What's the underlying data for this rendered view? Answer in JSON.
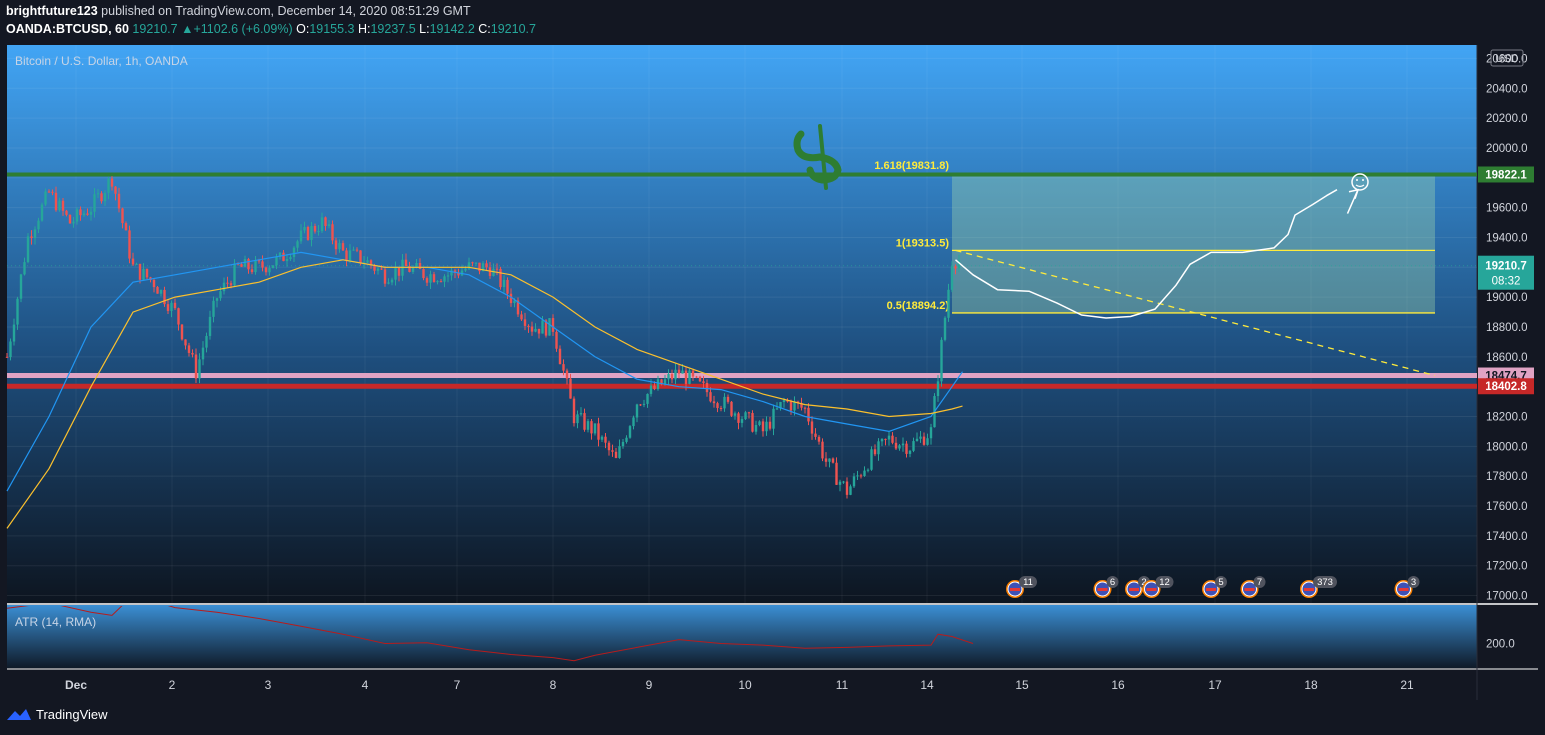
{
  "header": {
    "author": "brightfuture123",
    "published": "published on TradingView.com, December 14, 2020 08:51:29 GMT",
    "symbol": "OANDA:BTCUSD, 60",
    "last": "19210.7",
    "change_arrow": "▲",
    "change": "+1102.6 (+6.09%)",
    "o_label": "O:",
    "o": "19155.3",
    "h_label": "H:",
    "h": "19237.5",
    "l_label": "L:",
    "l": "19142.2",
    "c_label": "C:",
    "c": "19210.7"
  },
  "legend": {
    "main": "Bitcoin / U.S. Dollar, 1h, OANDA",
    "atr": "ATR (14, RMA)",
    "currency": "USD"
  },
  "footer": {
    "brand": "TradingView",
    "logo_icon": "tradingview-logo-icon"
  },
  "colors": {
    "up": "#26a69a",
    "down": "#ef5350",
    "resistance": "#2e7d32",
    "pink_line": "#e0a3c4",
    "red_line": "#c62828",
    "fib": "#ffeb3b",
    "ema_fast": "#2196f3",
    "ema_slow": "#fbc02d",
    "atr": "#b71c1c",
    "background": "#131722"
  },
  "chart_data": [
    {
      "type": "candlestick",
      "title": "Bitcoin / U.S. Dollar, 1h, OANDA",
      "x_ticks": [
        "Dec",
        "2",
        "3",
        "4",
        "7",
        "8",
        "9",
        "10",
        "11",
        "14",
        "15",
        "16",
        "17",
        "18",
        "21"
      ],
      "y_ticks": [
        17000,
        17200,
        17400,
        17600,
        17800,
        18000,
        18200,
        18400,
        18600,
        18800,
        19000,
        19200,
        19400,
        19600,
        19800,
        20000,
        20200,
        20400,
        20600
      ],
      "ylim": [
        16950,
        20690
      ],
      "y_tick_format": "1dp",
      "price_path": [
        [
          0,
          18600
        ],
        [
          6,
          19400
        ],
        [
          12,
          19700
        ],
        [
          18,
          19500
        ],
        [
          24,
          19600
        ],
        [
          30,
          19800
        ],
        [
          36,
          19200
        ],
        [
          42,
          19100
        ],
        [
          48,
          18900
        ],
        [
          54,
          18500
        ],
        [
          60,
          19000
        ],
        [
          66,
          19200
        ],
        [
          72,
          19200
        ],
        [
          78,
          19250
        ],
        [
          84,
          19400
        ],
        [
          90,
          19500
        ],
        [
          96,
          19300
        ],
        [
          102,
          19250
        ],
        [
          108,
          19150
        ],
        [
          114,
          19200
        ],
        [
          120,
          19150
        ],
        [
          126,
          19150
        ],
        [
          132,
          19200
        ],
        [
          138,
          19200
        ],
        [
          144,
          19000
        ],
        [
          150,
          18800
        ],
        [
          156,
          18800
        ],
        [
          162,
          18200
        ],
        [
          168,
          18100
        ],
        [
          174,
          17900
        ],
        [
          180,
          18300
        ],
        [
          186,
          18400
        ],
        [
          192,
          18500
        ],
        [
          198,
          18400
        ],
        [
          204,
          18300
        ],
        [
          210,
          18200
        ],
        [
          216,
          18100
        ],
        [
          222,
          18300
        ],
        [
          228,
          18250
        ],
        [
          234,
          17900
        ],
        [
          240,
          17700
        ],
        [
          246,
          17900
        ],
        [
          252,
          18050
        ],
        [
          258,
          18000
        ],
        [
          264,
          18100
        ],
        [
          270,
          19250
        ]
      ],
      "ema_fast": [
        [
          0,
          17700
        ],
        [
          12,
          18200
        ],
        [
          24,
          18800
        ],
        [
          36,
          19100
        ],
        [
          48,
          19150
        ],
        [
          60,
          19200
        ],
        [
          72,
          19250
        ],
        [
          84,
          19300
        ],
        [
          96,
          19250
        ],
        [
          108,
          19200
        ],
        [
          120,
          19200
        ],
        [
          132,
          19150
        ],
        [
          144,
          19000
        ],
        [
          156,
          18800
        ],
        [
          168,
          18600
        ],
        [
          180,
          18450
        ],
        [
          192,
          18400
        ],
        [
          204,
          18380
        ],
        [
          216,
          18300
        ],
        [
          228,
          18200
        ],
        [
          240,
          18150
        ],
        [
          252,
          18100
        ],
        [
          264,
          18200
        ],
        [
          270,
          18400
        ],
        [
          273,
          18500
        ]
      ],
      "ema_slow": [
        [
          0,
          17450
        ],
        [
          12,
          17850
        ],
        [
          24,
          18400
        ],
        [
          36,
          18900
        ],
        [
          48,
          19000
        ],
        [
          60,
          19050
        ],
        [
          72,
          19100
        ],
        [
          84,
          19200
        ],
        [
          96,
          19250
        ],
        [
          108,
          19200
        ],
        [
          120,
          19200
        ],
        [
          132,
          19200
        ],
        [
          144,
          19150
        ],
        [
          156,
          19000
        ],
        [
          168,
          18800
        ],
        [
          180,
          18650
        ],
        [
          192,
          18550
        ],
        [
          204,
          18450
        ],
        [
          216,
          18350
        ],
        [
          228,
          18280
        ],
        [
          240,
          18250
        ],
        [
          252,
          18200
        ],
        [
          264,
          18220
        ],
        [
          270,
          18250
        ],
        [
          273,
          18270
        ]
      ],
      "levels": [
        {
          "label": "19822.1",
          "value": 19822.1,
          "color": "#2e7d32"
        },
        {
          "label": "18474.7",
          "value": 18474.7,
          "color": "#e0a3c4"
        },
        {
          "label": "18402.8",
          "value": 18402.8,
          "color": "#c62828"
        }
      ],
      "last_price": {
        "label": "19210.7",
        "value": 19210.7,
        "countdown": "08:32"
      },
      "fib": [
        {
          "label": "1.618(19831.8)",
          "value": 19831.8
        },
        {
          "label": "1(19313.5)",
          "value": 19313.5
        },
        {
          "label": "0.5(18894.2)",
          "value": 18894.2
        }
      ],
      "fib_zone": {
        "start_bar": 270,
        "end_bar": 408,
        "top": 19831.8,
        "bottom": 18894.2
      },
      "projection_line": {
        "from": [
          271,
          19313.5
        ],
        "to": [
          408,
          18474.7
        ]
      },
      "forecast_path": [
        [
          271,
          19250
        ],
        [
          276,
          19150
        ],
        [
          283,
          19050
        ],
        [
          292,
          19040
        ],
        [
          300,
          18960
        ],
        [
          307,
          18880
        ],
        [
          314,
          18860
        ],
        [
          321,
          18870
        ],
        [
          328,
          18920
        ],
        [
          334,
          19080
        ],
        [
          338,
          19220
        ],
        [
          344,
          19300
        ],
        [
          353,
          19300
        ],
        [
          362,
          19330
        ],
        [
          366,
          19420
        ],
        [
          368,
          19550
        ],
        [
          373,
          19620
        ],
        [
          377,
          19680
        ],
        [
          380,
          19720
        ]
      ],
      "forecast_arrow": {
        "from": [
          383,
          19560
        ],
        "to": [
          386,
          19720
        ]
      },
      "event_markers": [
        {
          "bar": 288,
          "count": "11"
        },
        {
          "bar": 313,
          "count": "6"
        },
        {
          "bar": 322,
          "count": "2"
        },
        {
          "bar": 327,
          "count": "12"
        },
        {
          "bar": 344,
          "count": "5"
        },
        {
          "bar": 355,
          "count": "7"
        },
        {
          "bar": 372,
          "count": "373"
        },
        {
          "bar": 399,
          "count": "3"
        }
      ]
    },
    {
      "type": "line",
      "title": "ATR (14, RMA)",
      "y_ticks": [
        200
      ],
      "y_tick_format": "1dp",
      "ylim": [
        170,
        248
      ],
      "series": [
        {
          "values": [
            [
              0,
              245
            ],
            [
              12,
              252
            ],
            [
              24,
              240
            ],
            [
              30,
              236
            ],
            [
              36,
              262
            ],
            [
              48,
              246
            ],
            [
              60,
              240
            ],
            [
              72,
              232
            ],
            [
              84,
              222
            ],
            [
              96,
              212
            ],
            [
              108,
              200
            ],
            [
              120,
              201
            ],
            [
              132,
              192
            ],
            [
              144,
              186
            ],
            [
              156,
              182
            ],
            [
              162,
              178
            ],
            [
              168,
              185
            ],
            [
              180,
              195
            ],
            [
              192,
              205
            ],
            [
              204,
              200
            ],
            [
              216,
              198
            ],
            [
              228,
              194
            ],
            [
              240,
              195
            ],
            [
              252,
              197
            ],
            [
              264,
              198
            ],
            [
              266,
              212
            ],
            [
              270,
              209
            ],
            [
              276,
              200
            ]
          ]
        }
      ]
    }
  ]
}
